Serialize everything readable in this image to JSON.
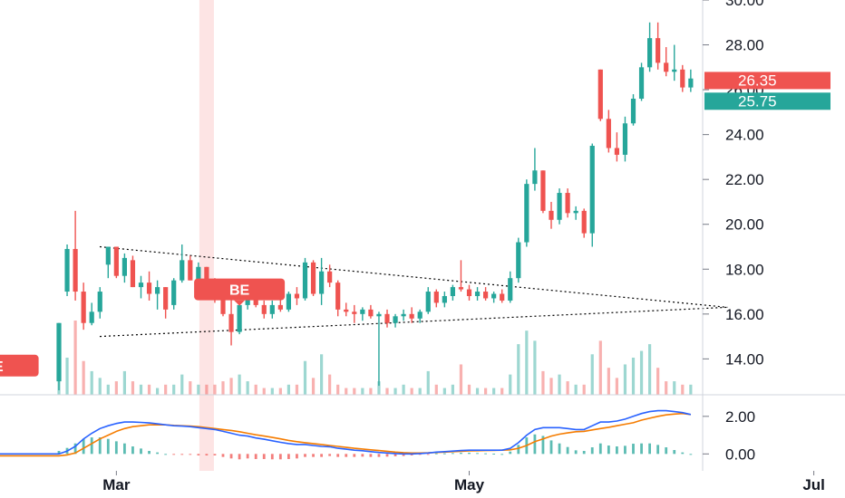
{
  "colors": {
    "up": "#26a69a",
    "down": "#ef5350",
    "highlight": "#fde4e4",
    "macd_line": "#2962ff",
    "signal_line": "#f57c00",
    "trend_line": "#000000",
    "axis_line": "#d1d4dc"
  },
  "price_tags": [
    {
      "label": "26.35",
      "value": 26.35,
      "color": "#ef5350"
    },
    {
      "label": "25.75",
      "value": 25.75,
      "color": "#26a69a"
    }
  ],
  "markers": [
    {
      "label": "BE",
      "bar": 22,
      "price": 17.1,
      "color": "#ef5350"
    },
    {
      "label": "BE",
      "bar": -8,
      "price": 13.7,
      "color": "#ef5350"
    },
    {
      "label": "E",
      "bar": -10,
      "price": 13.0,
      "color": "#ffffff"
    }
  ],
  "chart_data": [
    {
      "type": "candlestick",
      "title": "",
      "y_axis": {
        "position": "right",
        "ylim": [
          12.4,
          30.0
        ],
        "ticks": [
          14.0,
          16.0,
          18.0,
          20.0,
          22.0,
          24.0,
          26.0,
          28.0,
          30.0
        ],
        "tick_labels": [
          "14.00",
          "16.00",
          "18.00",
          "20.00",
          "22.00",
          "24.00",
          "26.00",
          "28.00",
          "30.00"
        ]
      },
      "x_axis": {
        "labels": [
          {
            "text": "Mar",
            "bar": 7
          },
          {
            "text": "May",
            "bar": 50
          },
          {
            "text": "Jul",
            "bar": 92
          }
        ]
      },
      "highlight_bars": [
        -9,
        18
      ],
      "candles": [
        [
          13.0,
          15.6,
          12.6,
          15.6
        ],
        [
          17.0,
          19.1,
          16.8,
          18.9
        ],
        [
          18.9,
          20.6,
          16.6,
          17.0
        ],
        [
          17.0,
          17.4,
          15.3,
          15.6
        ],
        [
          15.6,
          16.5,
          15.5,
          16.1
        ],
        [
          16.1,
          17.2,
          15.8,
          17.0
        ],
        [
          18.2,
          19.0,
          17.6,
          19.0
        ],
        [
          19.0,
          19.0,
          17.6,
          17.7
        ],
        [
          17.7,
          18.7,
          17.4,
          18.5
        ],
        [
          18.4,
          18.6,
          17.2,
          17.2
        ],
        [
          17.2,
          17.7,
          16.7,
          17.4
        ],
        [
          17.4,
          17.9,
          16.6,
          16.9
        ],
        [
          16.9,
          17.5,
          16.2,
          17.2
        ],
        [
          17.2,
          17.2,
          15.8,
          16.2
        ],
        [
          16.4,
          17.6,
          16.2,
          17.5
        ],
        [
          17.5,
          19.1,
          17.4,
          18.4
        ],
        [
          18.4,
          18.6,
          17.5,
          17.5
        ],
        [
          17.5,
          18.3,
          17.3,
          18.1
        ],
        [
          18.1,
          18.1,
          17.0,
          17.2
        ],
        [
          17.2,
          17.6,
          16.5,
          16.7
        ],
        [
          16.7,
          17.4,
          15.9,
          16.0
        ],
        [
          16.0,
          16.8,
          14.6,
          15.2
        ],
        [
          15.2,
          16.5,
          15.1,
          16.4
        ],
        [
          16.4,
          17.3,
          16.2,
          17.2
        ],
        [
          17.2,
          17.3,
          16.3,
          16.4
        ],
        [
          16.4,
          16.6,
          15.8,
          16.0
        ],
        [
          16.0,
          16.6,
          15.8,
          16.4
        ],
        [
          16.4,
          16.8,
          16.1,
          16.2
        ],
        [
          16.2,
          17.0,
          16.1,
          16.9
        ],
        [
          16.9,
          17.2,
          16.4,
          16.7
        ],
        [
          16.7,
          18.5,
          16.6,
          18.3
        ],
        [
          18.3,
          18.4,
          16.8,
          16.9
        ],
        [
          16.9,
          18.5,
          16.4,
          17.9
        ],
        [
          17.9,
          18.2,
          17.2,
          17.4
        ],
        [
          17.4,
          17.5,
          15.9,
          16.2
        ],
        [
          16.2,
          16.5,
          15.9,
          16.1
        ],
        [
          16.1,
          16.4,
          15.6,
          16.0
        ],
        [
          16.0,
          16.3,
          15.7,
          16.2
        ],
        [
          16.2,
          16.4,
          15.8,
          15.9
        ],
        [
          15.9,
          16.1,
          12.8,
          16.0
        ],
        [
          16.0,
          16.2,
          15.4,
          15.6
        ],
        [
          15.6,
          16.0,
          15.4,
          15.9
        ],
        [
          15.9,
          16.2,
          15.7,
          16.0
        ],
        [
          16.0,
          16.3,
          15.6,
          15.8
        ],
        [
          15.8,
          16.2,
          15.6,
          16.1
        ],
        [
          16.1,
          17.2,
          16.0,
          17.0
        ],
        [
          17.0,
          17.1,
          16.3,
          16.5
        ],
        [
          16.5,
          17.0,
          16.3,
          16.8
        ],
        [
          16.8,
          17.3,
          16.6,
          17.2
        ],
        [
          17.2,
          18.4,
          17.0,
          17.1
        ],
        [
          17.1,
          17.3,
          16.6,
          16.8
        ],
        [
          16.8,
          17.2,
          16.6,
          17.0
        ],
        [
          17.0,
          17.2,
          16.6,
          16.7
        ],
        [
          16.7,
          17.0,
          16.5,
          16.9
        ],
        [
          16.9,
          17.1,
          16.5,
          16.6
        ],
        [
          16.6,
          17.9,
          16.5,
          17.6
        ],
        [
          17.6,
          19.4,
          17.4,
          19.2
        ],
        [
          19.2,
          22.0,
          19.0,
          21.8
        ],
        [
          21.8,
          23.4,
          21.5,
          22.4
        ],
        [
          22.4,
          22.4,
          20.5,
          20.6
        ],
        [
          20.6,
          21.0,
          19.8,
          20.2
        ],
        [
          20.2,
          21.6,
          20.0,
          21.4
        ],
        [
          21.4,
          21.6,
          20.3,
          20.5
        ],
        [
          20.5,
          20.8,
          20.2,
          20.6
        ],
        [
          20.6,
          20.7,
          19.4,
          19.6
        ],
        [
          19.6,
          23.6,
          19.0,
          23.5
        ],
        [
          26.9,
          26.9,
          24.6,
          24.7
        ],
        [
          24.7,
          25.1,
          23.2,
          23.4
        ],
        [
          23.4,
          24.1,
          22.8,
          23.1
        ],
        [
          23.1,
          24.8,
          22.8,
          24.5
        ],
        [
          24.5,
          25.8,
          24.4,
          25.6
        ],
        [
          25.6,
          27.2,
          25.5,
          27.0
        ],
        [
          27.0,
          29.0,
          26.8,
          28.3
        ],
        [
          28.3,
          29.0,
          26.9,
          27.2
        ],
        [
          27.2,
          27.9,
          26.6,
          26.8
        ],
        [
          26.8,
          28.0,
          26.4,
          26.9
        ],
        [
          26.9,
          27.1,
          25.9,
          26.1
        ],
        [
          26.1,
          26.9,
          25.9,
          26.5
        ]
      ],
      "volumes": [
        1.6,
        1.1,
        2.2,
        1.0,
        0.7,
        0.5,
        0.3,
        0.4,
        0.7,
        0.4,
        0.3,
        0.3,
        0.2,
        0.3,
        0.3,
        0.6,
        0.4,
        0.3,
        0.3,
        0.3,
        0.4,
        0.5,
        0.6,
        0.4,
        0.3,
        0.2,
        0.2,
        0.2,
        0.3,
        0.3,
        1.0,
        0.5,
        1.2,
        0.6,
        0.3,
        0.2,
        0.2,
        0.2,
        0.2,
        0.4,
        0.2,
        0.2,
        0.3,
        0.2,
        0.2,
        0.7,
        0.3,
        0.2,
        0.3,
        0.9,
        0.3,
        0.2,
        0.2,
        0.2,
        0.2,
        0.6,
        1.5,
        1.9,
        1.6,
        0.7,
        0.5,
        0.6,
        0.4,
        0.3,
        0.3,
        1.2,
        1.6,
        0.8,
        0.5,
        0.9,
        1.1,
        1.3,
        1.5,
        0.8,
        0.4,
        0.4,
        0.3,
        0.3
      ],
      "trendlines": [
        {
          "from": [
            0,
            19.0
          ],
          "to": [
            66,
            16.3
          ]
        },
        {
          "from": [
            0,
            15.0
          ],
          "to": [
            66,
            16.3
          ]
        }
      ]
    },
    {
      "type": "macd",
      "title": "",
      "y_axis": {
        "position": "right",
        "ylim": [
          -0.9,
          3.1
        ],
        "ticks": [
          0.0,
          2.0
        ],
        "tick_labels": [
          "0.00",
          "2.00"
        ]
      },
      "macd": [
        0.0,
        0.15,
        0.4,
        0.8,
        1.1,
        1.35,
        1.5,
        1.62,
        1.7,
        1.7,
        1.68,
        1.65,
        1.6,
        1.55,
        1.5,
        1.48,
        1.45,
        1.4,
        1.35,
        1.3,
        1.2,
        1.1,
        1.0,
        0.95,
        0.85,
        0.78,
        0.7,
        0.62,
        0.55,
        0.5,
        0.5,
        0.45,
        0.4,
        0.38,
        0.3,
        0.25,
        0.2,
        0.17,
        0.12,
        0.08,
        0.05,
        0.02,
        0.0,
        0.0,
        0.02,
        0.05,
        0.1,
        0.12,
        0.15,
        0.18,
        0.2,
        0.2,
        0.2,
        0.2,
        0.2,
        0.3,
        0.6,
        1.0,
        1.3,
        1.4,
        1.4,
        1.4,
        1.35,
        1.3,
        1.3,
        1.5,
        1.7,
        1.7,
        1.75,
        1.85,
        2.0,
        2.15,
        2.25,
        2.3,
        2.3,
        2.25,
        2.2,
        2.1
      ],
      "signal": [
        -0.1,
        -0.05,
        0.05,
        0.3,
        0.55,
        0.8,
        1.0,
        1.2,
        1.35,
        1.45,
        1.5,
        1.55,
        1.55,
        1.55,
        1.52,
        1.5,
        1.48,
        1.45,
        1.4,
        1.35,
        1.3,
        1.25,
        1.18,
        1.1,
        1.02,
        0.95,
        0.88,
        0.8,
        0.72,
        0.65,
        0.6,
        0.55,
        0.5,
        0.45,
        0.4,
        0.35,
        0.3,
        0.26,
        0.22,
        0.18,
        0.14,
        0.1,
        0.07,
        0.05,
        0.05,
        0.06,
        0.08,
        0.1,
        0.12,
        0.14,
        0.16,
        0.17,
        0.18,
        0.19,
        0.2,
        0.22,
        0.3,
        0.45,
        0.65,
        0.8,
        0.95,
        1.05,
        1.12,
        1.18,
        1.2,
        1.28,
        1.35,
        1.42,
        1.5,
        1.58,
        1.66,
        1.8,
        1.9,
        2.0,
        2.08,
        2.12,
        2.15,
        2.1
      ]
    }
  ]
}
